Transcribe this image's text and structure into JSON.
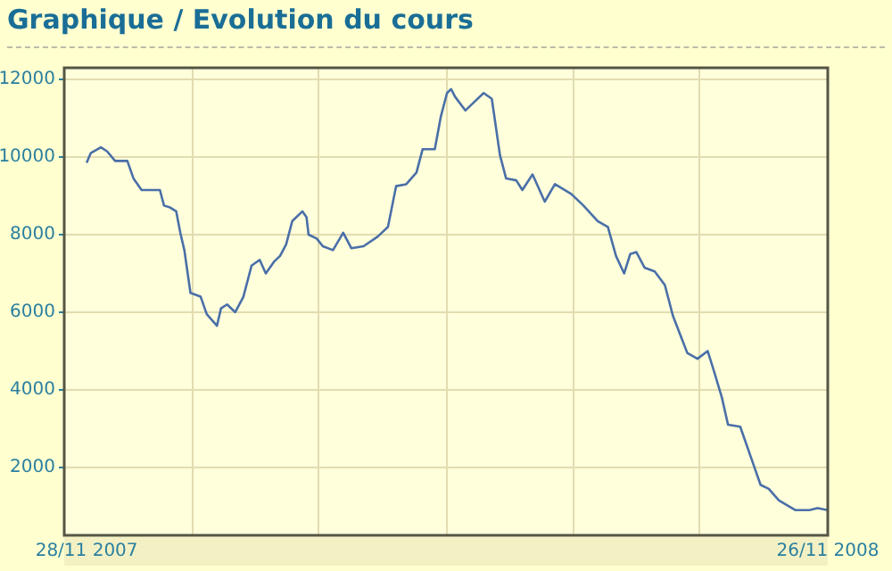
{
  "chart_data": {
    "type": "line",
    "title": "Graphique / Evolution du cours",
    "x": [
      "2007-11-28",
      "2007-11-30",
      "2007-12-05",
      "2007-12-08",
      "2007-12-12",
      "2007-12-18",
      "2007-12-21",
      "2007-12-25",
      "2008-01-03",
      "2008-01-05",
      "2008-01-08",
      "2008-01-11",
      "2008-01-13",
      "2008-01-15",
      "2008-01-18",
      "2008-01-23",
      "2008-01-26",
      "2008-01-31",
      "2008-02-02",
      "2008-02-05",
      "2008-02-09",
      "2008-02-13",
      "2008-02-17",
      "2008-02-21",
      "2008-02-24",
      "2008-02-28",
      "2008-03-02",
      "2008-03-05",
      "2008-03-08",
      "2008-03-13",
      "2008-03-15",
      "2008-03-16",
      "2008-03-20",
      "2008-03-23",
      "2008-03-28",
      "2008-04-02",
      "2008-04-06",
      "2008-04-12",
      "2008-04-19",
      "2008-04-24",
      "2008-04-28",
      "2008-05-03",
      "2008-05-08",
      "2008-05-11",
      "2008-05-17",
      "2008-05-20",
      "2008-05-23",
      "2008-05-25",
      "2008-05-27",
      "2008-06-01",
      "2008-06-05",
      "2008-06-10",
      "2008-06-14",
      "2008-06-18",
      "2008-06-21",
      "2008-06-26",
      "2008-06-29",
      "2008-07-04",
      "2008-07-10",
      "2008-07-15",
      "2008-07-23",
      "2008-07-29",
      "2008-08-05",
      "2008-08-10",
      "2008-08-14",
      "2008-08-18",
      "2008-08-21",
      "2008-08-24",
      "2008-08-28",
      "2008-09-02",
      "2008-09-07",
      "2008-09-11",
      "2008-09-18",
      "2008-09-23",
      "2008-09-28",
      "2008-10-01",
      "2008-10-05",
      "2008-10-08",
      "2008-10-14",
      "2008-10-19",
      "2008-10-24",
      "2008-10-28",
      "2008-11-02",
      "2008-11-10",
      "2008-11-17",
      "2008-11-21",
      "2008-11-26"
    ],
    "series": [
      {
        "color": "#4a6fa8",
        "values": [
          9850,
          10100,
          10250,
          10150,
          9900,
          9900,
          9450,
          9150,
          9150,
          8750,
          8700,
          8600,
          8050,
          7600,
          6500,
          6400,
          5950,
          5650,
          6100,
          6200,
          6000,
          6400,
          7200,
          7350,
          7000,
          7300,
          7450,
          7750,
          8350,
          8600,
          8450,
          8000,
          7900,
          7700,
          7600,
          8050,
          7650,
          7700,
          7950,
          8200,
          9250,
          9300,
          9600,
          10200,
          10200,
          11050,
          11650,
          11750,
          11550,
          11200,
          11400,
          11650,
          11500,
          10050,
          9450,
          9400,
          9150,
          9550,
          8850,
          9300,
          9050,
          8750,
          8350,
          8200,
          7450,
          7000,
          7500,
          7550,
          7150,
          7050,
          6700,
          5900,
          4950,
          4800,
          5000,
          4500,
          3800,
          3100,
          3050,
          2300,
          1550,
          1450,
          1150,
          900,
          900,
          950,
          900
        ]
      }
    ],
    "xlim": [
      "2007-11-17",
      "2008-11-26"
    ],
    "xticks": [
      {
        "value": "2007-11-28",
        "label": "28/11 2007"
      },
      {
        "value": "2008-01-19",
        "label": null
      },
      {
        "value": "2008-03-21",
        "label": null
      },
      {
        "value": "2008-05-23",
        "label": null
      },
      {
        "value": "2008-07-24",
        "label": null
      },
      {
        "value": "2008-09-24",
        "label": null
      },
      {
        "value": "2008-11-26",
        "label": "26/11 2008"
      }
    ],
    "ylim": [
      250,
      12300
    ],
    "yticks": [
      2000,
      4000,
      6000,
      8000,
      10000,
      12000
    ],
    "grid": true
  }
}
